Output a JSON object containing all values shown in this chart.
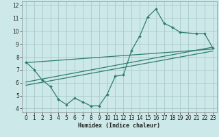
{
  "xlabel": "Humidex (Indice chaleur)",
  "bg_color": "#cce8e8",
  "grid_color": "#aacaca",
  "line_color": "#2e7d6e",
  "xlim": [
    -0.5,
    23.5
  ],
  "ylim": [
    3.7,
    12.3
  ],
  "xticks": [
    0,
    1,
    2,
    3,
    4,
    5,
    6,
    7,
    8,
    9,
    10,
    11,
    12,
    13,
    14,
    15,
    16,
    17,
    18,
    19,
    20,
    21,
    22,
    23
  ],
  "yticks": [
    4,
    5,
    6,
    7,
    8,
    9,
    10,
    11,
    12
  ],
  "curve1_x": [
    0,
    1,
    2,
    3,
    4,
    5,
    6,
    7,
    8,
    9,
    10,
    11,
    12,
    13,
    14,
    15,
    16,
    17,
    18,
    19,
    21,
    22,
    23
  ],
  "curve1_y": [
    7.6,
    7.0,
    6.2,
    5.7,
    4.7,
    4.3,
    4.8,
    4.5,
    4.2,
    4.2,
    5.1,
    6.5,
    6.6,
    8.5,
    9.6,
    11.1,
    11.7,
    10.6,
    10.3,
    9.9,
    9.8,
    9.8,
    8.7
  ],
  "trend1_x": [
    0,
    23
  ],
  "trend1_y": [
    6.05,
    8.75
  ],
  "trend2_x": [
    0,
    23
  ],
  "trend2_y": [
    7.55,
    8.6
  ],
  "trend3_x": [
    0,
    23
  ],
  "trend3_y": [
    5.8,
    8.45
  ]
}
